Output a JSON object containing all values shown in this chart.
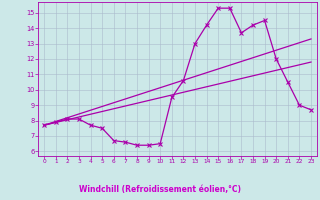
{
  "xlabel": "Windchill (Refroidissement éolien,°C)",
  "xlim": [
    -0.5,
    23.5
  ],
  "ylim": [
    5.7,
    15.7
  ],
  "yticks": [
    6,
    7,
    8,
    9,
    10,
    11,
    12,
    13,
    14,
    15
  ],
  "xticks": [
    0,
    1,
    2,
    3,
    4,
    5,
    6,
    7,
    8,
    9,
    10,
    11,
    12,
    13,
    14,
    15,
    16,
    17,
    18,
    19,
    20,
    21,
    22,
    23
  ],
  "bg_color": "#cce8e8",
  "line_color": "#aa00aa",
  "grid_color": "#aabbcc",
  "xlabel_bg": "#7777bb",
  "line1_x": [
    0,
    1,
    2,
    3,
    4,
    5,
    6,
    7,
    8,
    9,
    10,
    11,
    12,
    13,
    14,
    15,
    16,
    17,
    18,
    19,
    20,
    21,
    22,
    23
  ],
  "line1_y": [
    7.7,
    7.9,
    8.1,
    8.1,
    7.7,
    7.5,
    6.7,
    6.6,
    6.4,
    6.4,
    6.5,
    9.5,
    10.6,
    13.0,
    14.2,
    15.3,
    15.3,
    13.7,
    14.2,
    14.5,
    12.0,
    10.5,
    9.0,
    8.7
  ],
  "line2_x": [
    0,
    23
  ],
  "line2_y": [
    7.7,
    13.3
  ],
  "line3_x": [
    0,
    23
  ],
  "line3_y": [
    7.7,
    11.8
  ]
}
